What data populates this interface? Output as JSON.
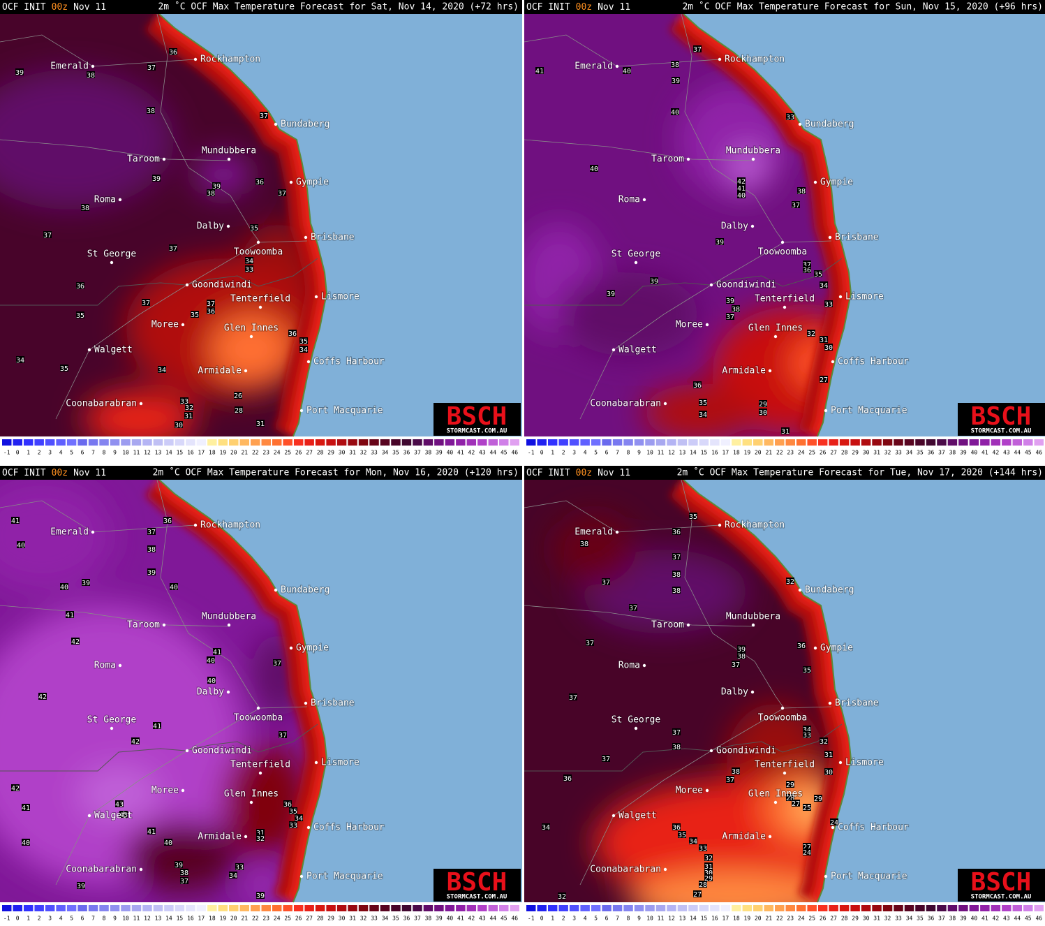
{
  "panels": [
    {
      "init": "OCF INIT",
      "init_hour": "00z",
      "init_date": "Nov 11",
      "title": "2m ˚C OCF Max Temperature Forecast for Sat, Nov 14, 2020 (+72 hrs)",
      "contour_labels": [
        39,
        37,
        38,
        36,
        38,
        37,
        39,
        38,
        38,
        39,
        36,
        37,
        37,
        35,
        37,
        34,
        33,
        36,
        37,
        37,
        36,
        35,
        35,
        36,
        35,
        34,
        34,
        35,
        34,
        26,
        33,
        32,
        31,
        30,
        28,
        31
      ]
    },
    {
      "init": "OCF INIT",
      "init_hour": "00z",
      "init_date": "Nov 11",
      "title": "2m ˚C OCF Max Temperature Forecast for Sun, Nov 15, 2020 (+96 hrs)",
      "contour_labels": [
        41,
        40,
        38,
        37,
        39,
        40,
        33,
        40,
        42,
        41,
        40,
        38,
        37,
        39,
        37,
        36,
        35,
        39,
        34,
        39,
        39,
        38,
        37,
        33,
        32,
        31,
        30,
        27,
        36,
        35,
        34,
        29,
        30,
        31
      ]
    },
    {
      "init": "OCF INIT",
      "init_hour": "00z",
      "init_date": "Nov 11",
      "title": "2m ˚C OCF Max Temperature Forecast for Mon, Nov 16, 2020 (+120 hrs)",
      "contour_labels": [
        41,
        40,
        36,
        37,
        38,
        39,
        40,
        39,
        40,
        41,
        42,
        41,
        40,
        37,
        40,
        42,
        41,
        42,
        37,
        42,
        41,
        43,
        43,
        36,
        35,
        34,
        33,
        41,
        31,
        32,
        40,
        40,
        39,
        38,
        37,
        33,
        34,
        39,
        39
      ]
    },
    {
      "init": "OCF INIT",
      "init_hour": "00z",
      "init_date": "Nov 11",
      "title": "2m ˚C OCF Max Temperature Forecast for Tue, Nov 17, 2020 (+144 hrs)",
      "contour_labels": [
        35,
        36,
        38,
        37,
        37,
        38,
        38,
        32,
        37,
        37,
        36,
        39,
        38,
        37,
        35,
        37,
        34,
        33,
        37,
        38,
        32,
        31,
        37,
        38,
        37,
        30,
        36,
        29,
        28,
        27,
        29,
        25,
        24,
        34,
        36,
        35,
        34,
        33,
        27,
        24,
        32,
        31,
        30,
        29,
        28,
        27,
        32
      ]
    }
  ],
  "cities": [
    "Emerald",
    "Rockhampton",
    "Bundaberg",
    "Taroom",
    "Mundubbera",
    "Gympie",
    "Roma",
    "Dalby",
    "Brisbane",
    "Toowoomba",
    "St George",
    "Goondiwindi",
    "Lismore",
    "Tenterfield",
    "Moree",
    "Glen Innes",
    "Walgett",
    "Coffs Harbour",
    "Armidale",
    "Coonabarabran",
    "Port Macquarie"
  ],
  "logo": {
    "name": "BSCH",
    "site": "STORMCAST.COM.AU"
  },
  "colorbar": {
    "labels": [
      -1,
      0,
      1,
      2,
      3,
      4,
      5,
      6,
      7,
      8,
      9,
      10,
      11,
      12,
      13,
      14,
      15,
      16,
      17,
      18,
      19,
      20,
      21,
      22,
      23,
      24,
      25,
      26,
      27,
      28,
      29,
      30,
      31,
      32,
      33,
      34,
      35,
      36,
      37,
      38,
      39,
      40,
      41,
      42,
      43,
      44,
      45,
      46
    ],
    "colors": [
      "#1010e0",
      "#2020f0",
      "#3030ff",
      "#4040ff",
      "#5050ff",
      "#6060ff",
      "#7070ff",
      "#6a6aee",
      "#7878f0",
      "#8484f0",
      "#9090f0",
      "#9c9cf0",
      "#a8a8f0",
      "#b4b4f4",
      "#c0c0f4",
      "#ccccf8",
      "#d8d8fa",
      "#e4e4fc",
      "#f0f0ff",
      "#fff0a0",
      "#ffe080",
      "#ffd070",
      "#ffb860",
      "#ffa050",
      "#ff8840",
      "#ff7030",
      "#ff5028",
      "#f83020",
      "#e82018",
      "#d81810",
      "#c81010",
      "#b00c10",
      "#980810",
      "#800610",
      "#680418",
      "#580420",
      "#480428",
      "#400830",
      "#4a0a48",
      "#600c68",
      "#701080",
      "#801898",
      "#9020a8",
      "#a030b8",
      "#b040c8",
      "#c060d8",
      "#d080e8",
      "#e0a0f0"
    ]
  }
}
